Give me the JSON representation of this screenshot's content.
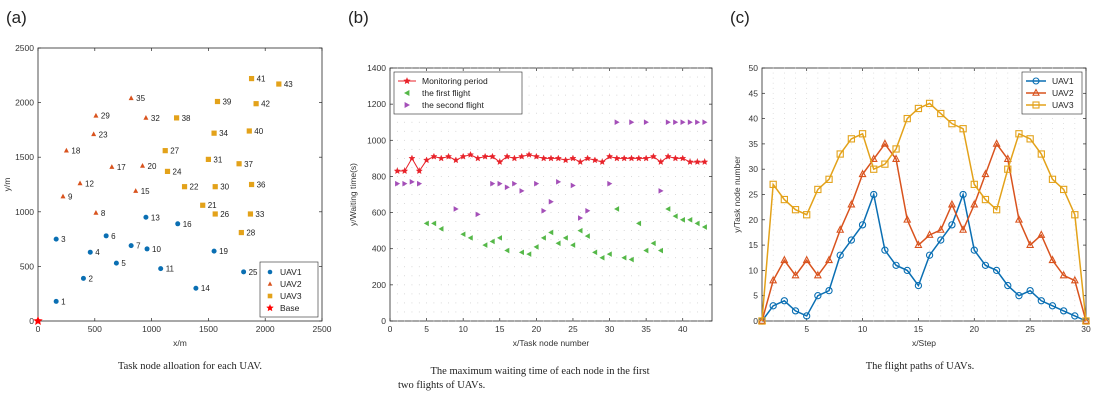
{
  "panels": {
    "a": {
      "label": "(a)",
      "caption": "Task node alloation for each UAV."
    },
    "b": {
      "label": "(b)",
      "caption_line1": "The maximum waiting time of each node in the first",
      "caption_line2": "two flights of UAVs."
    },
    "c": {
      "label": "(c)",
      "caption": "The flight paths of  UAVs."
    }
  },
  "colors": {
    "uav1": "#0a6fb3",
    "uav2": "#d9531e",
    "uav3": "#e3a21a",
    "base": "#ff0000",
    "green": "#55b848",
    "purple": "#a44fb8",
    "red": "#e8222a"
  },
  "chart_data": [
    {
      "type": "scatter",
      "xlabel": "x/m",
      "ylabel": "y/m",
      "xlim": [
        0,
        2500
      ],
      "ylim": [
        0,
        2500
      ],
      "xticks": [
        0,
        500,
        1000,
        1500,
        2000,
        2500
      ],
      "yticks": [
        0,
        500,
        1000,
        1500,
        2000,
        2500
      ],
      "legend_position": "bottom-right",
      "series": [
        {
          "name": "UAV1",
          "marker": "circle",
          "points": [
            {
              "id": "1",
              "x": 160,
              "y": 180
            },
            {
              "id": "2",
              "x": 400,
              "y": 390
            },
            {
              "id": "3",
              "x": 160,
              "y": 750
            },
            {
              "id": "4",
              "x": 460,
              "y": 630
            },
            {
              "id": "5",
              "x": 690,
              "y": 530
            },
            {
              "id": "6",
              "x": 600,
              "y": 780
            },
            {
              "id": "7",
              "x": 820,
              "y": 690
            },
            {
              "id": "10",
              "x": 960,
              "y": 660
            },
            {
              "id": "11",
              "x": 1080,
              "y": 480
            },
            {
              "id": "13",
              "x": 950,
              "y": 950
            },
            {
              "id": "14",
              "x": 1390,
              "y": 300
            },
            {
              "id": "16",
              "x": 1230,
              "y": 890
            },
            {
              "id": "19",
              "x": 1550,
              "y": 640
            },
            {
              "id": "25",
              "x": 1810,
              "y": 450
            }
          ]
        },
        {
          "name": "UAV2",
          "marker": "triangle",
          "points": [
            {
              "id": "8",
              "x": 510,
              "y": 990
            },
            {
              "id": "9",
              "x": 220,
              "y": 1140
            },
            {
              "id": "12",
              "x": 370,
              "y": 1260
            },
            {
              "id": "15",
              "x": 860,
              "y": 1190
            },
            {
              "id": "17",
              "x": 650,
              "y": 1410
            },
            {
              "id": "18",
              "x": 250,
              "y": 1560
            },
            {
              "id": "20",
              "x": 920,
              "y": 1420
            },
            {
              "id": "23",
              "x": 490,
              "y": 1710
            },
            {
              "id": "29",
              "x": 510,
              "y": 1880
            },
            {
              "id": "32",
              "x": 950,
              "y": 1860
            },
            {
              "id": "35",
              "x": 820,
              "y": 2040
            }
          ]
        },
        {
          "name": "UAV3",
          "marker": "square",
          "points": [
            {
              "id": "21",
              "x": 1450,
              "y": 1060
            },
            {
              "id": "22",
              "x": 1290,
              "y": 1230
            },
            {
              "id": "24",
              "x": 1140,
              "y": 1370
            },
            {
              "id": "26",
              "x": 1560,
              "y": 980
            },
            {
              "id": "27",
              "x": 1120,
              "y": 1560
            },
            {
              "id": "28",
              "x": 1790,
              "y": 810
            },
            {
              "id": "30",
              "x": 1560,
              "y": 1230
            },
            {
              "id": "31",
              "x": 1500,
              "y": 1480
            },
            {
              "id": "33",
              "x": 1870,
              "y": 980
            },
            {
              "id": "34",
              "x": 1550,
              "y": 1720
            },
            {
              "id": "36",
              "x": 1880,
              "y": 1250
            },
            {
              "id": "37",
              "x": 1770,
              "y": 1440
            },
            {
              "id": "38",
              "x": 1220,
              "y": 1860
            },
            {
              "id": "39",
              "x": 1580,
              "y": 2010
            },
            {
              "id": "40",
              "x": 1860,
              "y": 1740
            },
            {
              "id": "41",
              "x": 1880,
              "y": 2220
            },
            {
              "id": "42",
              "x": 1920,
              "y": 1990
            },
            {
              "id": "43",
              "x": 2120,
              "y": 2170
            }
          ]
        },
        {
          "name": "Base",
          "marker": "star",
          "points": [
            {
              "id": "",
              "x": 0,
              "y": 0
            }
          ]
        }
      ]
    },
    {
      "type": "line",
      "xlabel": "x/Task node number",
      "ylabel": "y/Waiting time(s)",
      "xlim": [
        0,
        44
      ],
      "ylim": [
        0,
        1400
      ],
      "xticks": [
        0,
        5,
        10,
        15,
        20,
        25,
        30,
        35,
        40
      ],
      "yticks": [
        0,
        200,
        400,
        600,
        800,
        1000,
        1200,
        1400
      ],
      "legend_position": "top-left",
      "series": [
        {
          "name": "Monitoring period",
          "marker": "star",
          "line": true,
          "x": [
            1,
            2,
            3,
            4,
            5,
            6,
            7,
            8,
            9,
            10,
            11,
            12,
            13,
            14,
            15,
            16,
            17,
            18,
            19,
            20,
            21,
            22,
            23,
            24,
            25,
            26,
            27,
            28,
            29,
            30,
            31,
            32,
            33,
            34,
            35,
            36,
            37,
            38,
            39,
            40,
            41,
            42,
            43
          ],
          "values": [
            830,
            830,
            900,
            830,
            890,
            910,
            900,
            910,
            890,
            910,
            920,
            900,
            910,
            910,
            880,
            910,
            900,
            910,
            920,
            910,
            900,
            900,
            900,
            890,
            900,
            880,
            900,
            890,
            880,
            910,
            900,
            900,
            900,
            900,
            900,
            910,
            880,
            910,
            900,
            900,
            880,
            880,
            880
          ]
        },
        {
          "name": "the first flight",
          "marker": "triangle-left",
          "line": false,
          "x": [
            5,
            6,
            7,
            10,
            11,
            13,
            14,
            15,
            16,
            18,
            19,
            20,
            21,
            22,
            23,
            24,
            25,
            26,
            27,
            28,
            29,
            30,
            31,
            32,
            33,
            34,
            35,
            36,
            37,
            38,
            39,
            40,
            41,
            42,
            43
          ],
          "values": [
            540,
            540,
            510,
            480,
            460,
            420,
            440,
            460,
            390,
            380,
            370,
            410,
            460,
            490,
            430,
            460,
            420,
            500,
            470,
            380,
            350,
            370,
            620,
            350,
            340,
            540,
            390,
            430,
            390,
            620,
            580,
            560,
            560,
            540,
            520
          ]
        },
        {
          "name": "the second flight",
          "marker": "triangle-right",
          "line": false,
          "x": [
            1,
            2,
            3,
            4,
            9,
            12,
            14,
            15,
            16,
            17,
            18,
            20,
            21,
            22,
            23,
            25,
            26,
            27,
            30,
            31,
            33,
            35,
            37,
            38,
            39,
            40,
            41,
            42,
            43
          ],
          "values": [
            760,
            760,
            770,
            760,
            620,
            590,
            760,
            760,
            740,
            760,
            720,
            760,
            610,
            660,
            770,
            750,
            570,
            610,
            760,
            1100,
            1100,
            1100,
            720,
            1100,
            1100,
            1100,
            1100,
            1100,
            1100
          ]
        }
      ]
    },
    {
      "type": "line",
      "xlabel": "x/Step",
      "ylabel": "y/Task node number",
      "xlim": [
        1,
        30
      ],
      "ylim": [
        0,
        50
      ],
      "xticks": [
        5,
        10,
        15,
        20,
        25,
        30
      ],
      "yticks": [
        0,
        5,
        10,
        15,
        20,
        25,
        30,
        35,
        40,
        45,
        50
      ],
      "legend_position": "top-left",
      "series": [
        {
          "name": "UAV1",
          "marker": "circle",
          "x": [
            1,
            2,
            3,
            4,
            5,
            6,
            7,
            8,
            9,
            10,
            11,
            12,
            13,
            14,
            15,
            16,
            17,
            18,
            19,
            20,
            21,
            22,
            23,
            24,
            25,
            26,
            27,
            28,
            29,
            30
          ],
          "values": [
            0,
            3,
            4,
            2,
            1,
            5,
            6,
            13,
            16,
            19,
            25,
            14,
            11,
            10,
            7,
            13,
            16,
            19,
            25,
            14,
            11,
            10,
            7,
            5,
            6,
            4,
            3,
            2,
            1,
            0
          ]
        },
        {
          "name": "UAV2",
          "marker": "triangle",
          "x": [
            1,
            2,
            3,
            4,
            5,
            6,
            7,
            8,
            9,
            10,
            11,
            12,
            13,
            14,
            15,
            16,
            17,
            18,
            19,
            20,
            21,
            22,
            23,
            24,
            25,
            26,
            27,
            28,
            29,
            30
          ],
          "values": [
            0,
            8,
            12,
            9,
            12,
            9,
            12,
            18,
            23,
            29,
            32,
            35,
            32,
            20,
            15,
            17,
            18,
            23,
            18,
            23,
            29,
            35,
            32,
            20,
            15,
            17,
            12,
            9,
            8,
            0
          ]
        },
        {
          "name": "UAV3",
          "marker": "square",
          "x": [
            1,
            2,
            3,
            4,
            5,
            6,
            7,
            8,
            9,
            10,
            11,
            12,
            13,
            14,
            15,
            16,
            17,
            18,
            19,
            20,
            21,
            22,
            23,
            24,
            25,
            26,
            27,
            28,
            29,
            30
          ],
          "values": [
            0,
            27,
            24,
            22,
            21,
            26,
            28,
            33,
            36,
            37,
            30,
            31,
            34,
            40,
            42,
            43,
            41,
            39,
            38,
            27,
            24,
            22,
            30,
            37,
            36,
            33,
            28,
            26,
            21,
            0
          ]
        }
      ]
    }
  ]
}
